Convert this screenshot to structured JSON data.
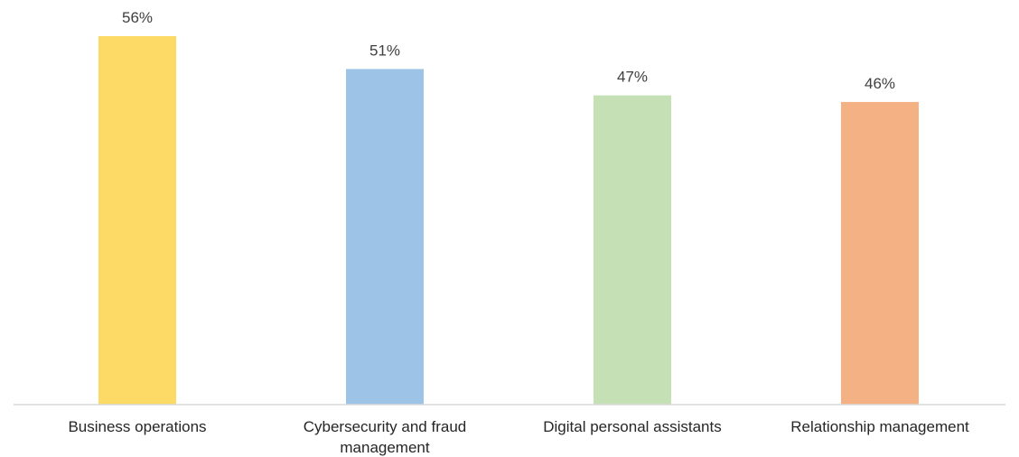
{
  "chart_data": {
    "type": "bar",
    "title": "",
    "xlabel": "",
    "ylabel": "",
    "ylim": [
      0,
      56
    ],
    "grid": false,
    "categories": [
      [
        "Business operations"
      ],
      [
        "Cybersecurity and fraud",
        "management"
      ],
      [
        "Digital personal assistants"
      ],
      [
        "Relationship management"
      ]
    ],
    "values": [
      56,
      51,
      47,
      46
    ],
    "value_labels": [
      "56%",
      "51%",
      "47%",
      "46%"
    ],
    "colors": [
      "#FDD966",
      "#9DC3E6",
      "#C5E0B4",
      "#F4B183"
    ]
  }
}
